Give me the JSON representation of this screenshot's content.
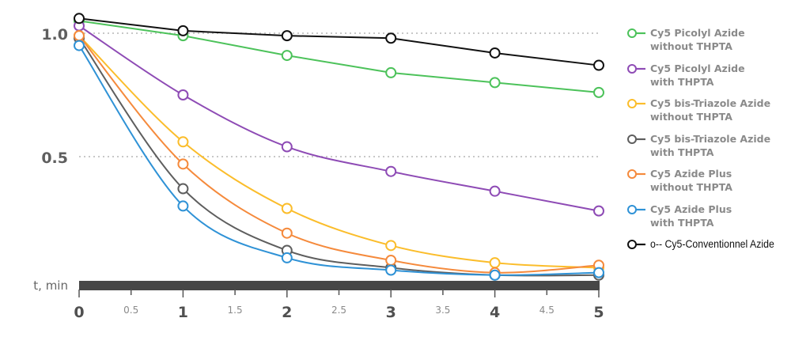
{
  "chart_data": {
    "type": "line",
    "title": "",
    "xlabel": "t, min",
    "ylabel": "",
    "x": [
      0,
      1,
      2,
      3,
      4,
      5
    ],
    "x_ticks_major": [
      "0",
      "1",
      "2",
      "3",
      "4",
      "5"
    ],
    "x_ticks_minor": [
      "0.5",
      "1.5",
      "2.5",
      "3.5",
      "4.5"
    ],
    "y_ticks": [
      "1.0",
      "0.5"
    ],
    "ylim": [
      0,
      1.06
    ],
    "xlim": [
      0,
      5
    ],
    "grid": "dotted horizontal at 0.5 and 1.0",
    "legend_position": "right",
    "series": [
      {
        "name": "Cy5 Picolyl Azide\nwithout THPTA",
        "color": "#4cc25a",
        "values": [
          1.05,
          0.99,
          0.91,
          0.84,
          0.8,
          0.76
        ]
      },
      {
        "name": "Cy5 Picolyl Azide\nwith THPTA",
        "color": "#8e4bb5",
        "values": [
          1.03,
          0.75,
          0.54,
          0.44,
          0.36,
          0.28
        ]
      },
      {
        "name": "Cy5 bis-Triazole Azide\nwithout THPTA",
        "color": "#fbbd2b",
        "values": [
          0.99,
          0.56,
          0.29,
          0.14,
          0.07,
          0.05
        ]
      },
      {
        "name": "Cy5 bis-Triazole Azide\nwith THPTA",
        "color": "#5e5e5e",
        "values": [
          0.98,
          0.37,
          0.12,
          0.05,
          0.02,
          0.02
        ]
      },
      {
        "name": "Cy5 Azide Plus\nwithout THPTA",
        "color": "#f58a3c",
        "values": [
          0.99,
          0.47,
          0.19,
          0.08,
          0.03,
          0.06
        ]
      },
      {
        "name": "Cy5 Azide Plus\nwith THPTA",
        "color": "#2f92d6",
        "values": [
          0.95,
          0.3,
          0.09,
          0.04,
          0.02,
          0.03
        ]
      },
      {
        "name": "o-- Cy5-Conventionnel Azide",
        "color": "#111111",
        "values": [
          1.06,
          1.01,
          0.99,
          0.98,
          0.92,
          0.87
        ]
      }
    ]
  },
  "legend": [
    {
      "label": "Cy5 Picolyl Azide\nwithout THPTA",
      "color": "#4cc25a"
    },
    {
      "label": "Cy5 Picolyl Azide\nwith THPTA",
      "color": "#8e4bb5"
    },
    {
      "label": "Cy5 bis-Triazole Azide\nwithout THPTA",
      "color": "#fbbd2b"
    },
    {
      "label": "Cy5 bis-Triazole Azide\nwith THPTA",
      "color": "#5e5e5e"
    },
    {
      "label": "Cy5 Azide Plus\nwithout THPTA",
      "color": "#f58a3c"
    },
    {
      "label": "Cy5 Azide Plus\nwith THPTA",
      "color": "#2f92d6"
    },
    {
      "label": "o-- Cy5-Conventionnel Azide",
      "color": "#111111"
    }
  ],
  "axis": {
    "x_label": "t, min",
    "bar_color": "#474747",
    "tick_color": "#555555",
    "grid_color": "#c8c8c8"
  }
}
